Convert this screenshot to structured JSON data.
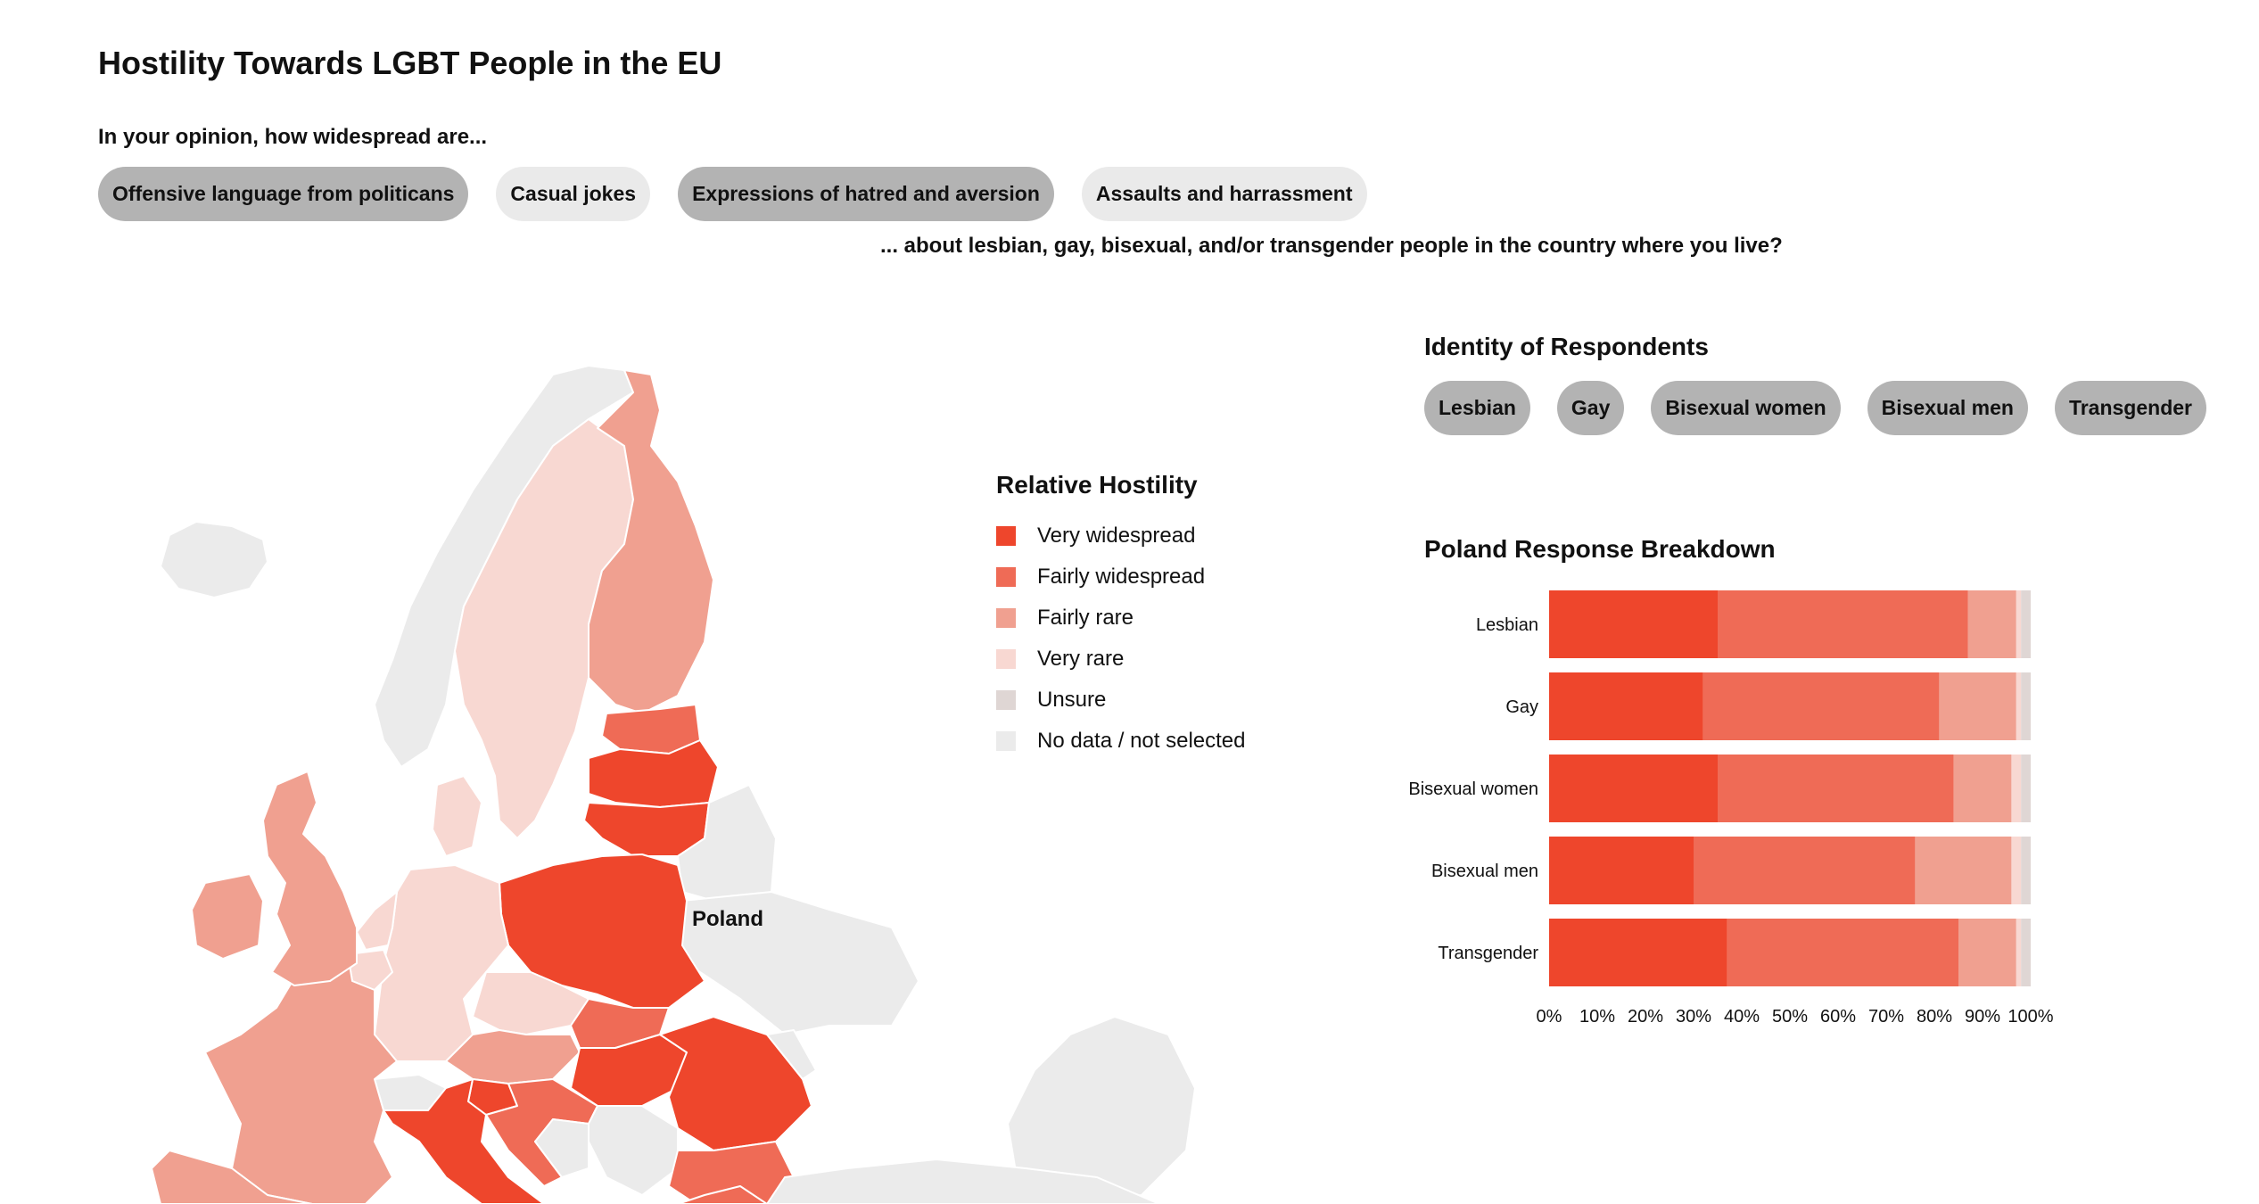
{
  "page": {
    "title": "Hostility Towards LGBT People in the EU",
    "question_prefix": "In your opinion, how widespread are...",
    "question_suffix": "... about lesbian, gay, bisexual, and/or transgender people in the country where you live?"
  },
  "question_options": [
    {
      "label": "Offensive language from politicans",
      "selected": true
    },
    {
      "label": "Casual jokes",
      "selected": false
    },
    {
      "label": "Expressions of hatred and aversion",
      "selected": true
    },
    {
      "label": "Assaults and harrassment",
      "selected": false
    }
  ],
  "map": {
    "selected_country_label": "Poland"
  },
  "legend": {
    "title": "Relative Hostility",
    "items": [
      {
        "label": "Very widespread",
        "color": "#ee462c"
      },
      {
        "label": "Fairly widespread",
        "color": "#ef6b56"
      },
      {
        "label": "Fairly rare",
        "color": "#f0a090"
      },
      {
        "label": "Very rare",
        "color": "#f8d8d2"
      },
      {
        "label": "Unsure",
        "color": "#dfd6d4"
      },
      {
        "label": "No data / not selected",
        "color": "#ebebeb"
      }
    ]
  },
  "identity": {
    "title": "Identity of Respondents",
    "options": [
      {
        "label": "Lesbian",
        "selected": true
      },
      {
        "label": "Gay",
        "selected": true
      },
      {
        "label": "Bisexual women",
        "selected": true
      },
      {
        "label": "Bisexual men",
        "selected": true
      },
      {
        "label": "Transgender",
        "selected": true
      }
    ]
  },
  "breakdown": {
    "title": "Poland Response Breakdown"
  },
  "chart_data": {
    "type": "bar",
    "orientation": "horizontal",
    "stacked": true,
    "title": "Poland Response Breakdown",
    "categories": [
      "Lesbian",
      "Gay",
      "Bisexual women",
      "Bisexual men",
      "Transgender"
    ],
    "series": [
      {
        "name": "Very widespread",
        "color": "#ee462c",
        "values": [
          35,
          32,
          35,
          30,
          37
        ]
      },
      {
        "name": "Fairly widespread",
        "color": "#ef6b56",
        "values": [
          52,
          49,
          49,
          46,
          48
        ]
      },
      {
        "name": "Fairly rare",
        "color": "#f0a090",
        "values": [
          10,
          16,
          12,
          20,
          12
        ]
      },
      {
        "name": "Very rare",
        "color": "#f8d8d2",
        "values": [
          1,
          1,
          2,
          2,
          1
        ]
      },
      {
        "name": "Unsure",
        "color": "#dfd6d4",
        "values": [
          2,
          2,
          2,
          2,
          2
        ]
      }
    ],
    "xticks": [
      "0%",
      "10%",
      "20%",
      "30%",
      "40%",
      "50%",
      "60%",
      "70%",
      "80%",
      "90%",
      "100%"
    ],
    "xlim": [
      0,
      100
    ]
  }
}
